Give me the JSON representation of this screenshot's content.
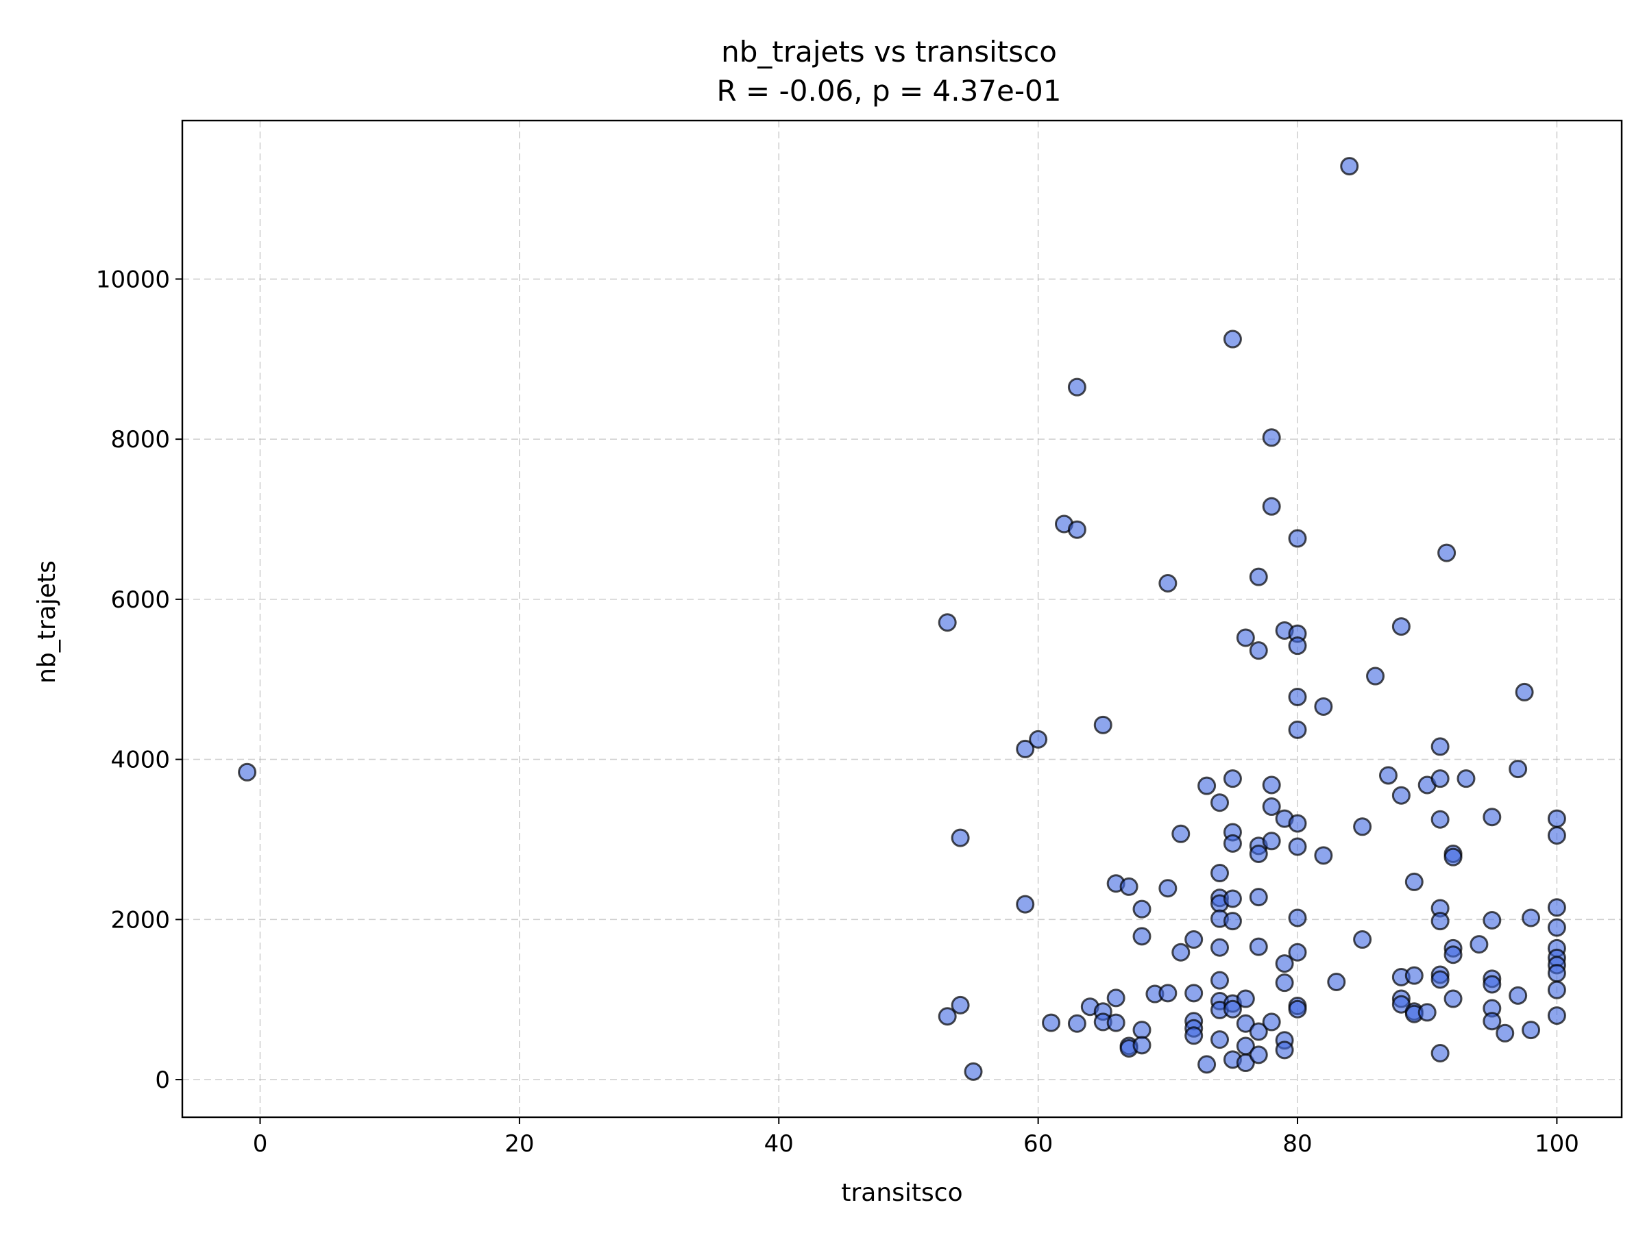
{
  "chart_data": {
    "type": "scatter",
    "title": "nb_trajets vs transitsco",
    "subtitle": "R = -0.06, p = 4.37e-01",
    "xlabel": "transitsco",
    "ylabel": "nb_trajets",
    "xlim": [
      -6,
      105
    ],
    "ylim": [
      -470,
      11980
    ],
    "xticks": [
      0,
      20,
      40,
      60,
      80,
      100
    ],
    "yticks": [
      0,
      2000,
      4000,
      6000,
      8000,
      10000
    ],
    "grid": true,
    "colors": {
      "point_fill": "#4169e1",
      "point_edge": "#000000"
    },
    "points": [
      [
        -1,
        3840
      ],
      [
        53,
        5710
      ],
      [
        53,
        790
      ],
      [
        54,
        3020
      ],
      [
        54,
        930
      ],
      [
        55,
        100
      ],
      [
        59,
        4130
      ],
      [
        59,
        2190
      ],
      [
        60,
        4250
      ],
      [
        61,
        710
      ],
      [
        62,
        6940
      ],
      [
        63,
        8650
      ],
      [
        63,
        6870
      ],
      [
        63,
        700
      ],
      [
        64,
        910
      ],
      [
        65,
        4430
      ],
      [
        65,
        850
      ],
      [
        65,
        720
      ],
      [
        66,
        2450
      ],
      [
        66,
        1020
      ],
      [
        66,
        710
      ],
      [
        67,
        2410
      ],
      [
        67,
        420
      ],
      [
        67,
        390
      ],
      [
        68,
        2130
      ],
      [
        68,
        1790
      ],
      [
        68,
        620
      ],
      [
        68,
        430
      ],
      [
        69,
        1070
      ],
      [
        70,
        6200
      ],
      [
        70,
        2390
      ],
      [
        70,
        1080
      ],
      [
        71,
        3070
      ],
      [
        71,
        1590
      ],
      [
        72,
        1750
      ],
      [
        72,
        1080
      ],
      [
        72,
        730
      ],
      [
        72,
        640
      ],
      [
        72,
        550
      ],
      [
        73,
        3670
      ],
      [
        73,
        190
      ],
      [
        74,
        3460
      ],
      [
        74,
        2580
      ],
      [
        74,
        2270
      ],
      [
        74,
        2200
      ],
      [
        74,
        2010
      ],
      [
        74,
        1650
      ],
      [
        74,
        1240
      ],
      [
        74,
        980
      ],
      [
        74,
        870
      ],
      [
        74,
        500
      ],
      [
        75,
        9250
      ],
      [
        75,
        3760
      ],
      [
        75,
        3090
      ],
      [
        75,
        2950
      ],
      [
        75,
        2260
      ],
      [
        75,
        1980
      ],
      [
        75,
        950
      ],
      [
        75,
        880
      ],
      [
        75,
        250
      ],
      [
        76,
        5520
      ],
      [
        76,
        1010
      ],
      [
        76,
        700
      ],
      [
        76,
        420
      ],
      [
        76,
        210
      ],
      [
        77,
        6280
      ],
      [
        77,
        5360
      ],
      [
        77,
        2920
      ],
      [
        77,
        2820
      ],
      [
        77,
        2280
      ],
      [
        77,
        1660
      ],
      [
        77,
        600
      ],
      [
        77,
        310
      ],
      [
        78,
        8020
      ],
      [
        78,
        7160
      ],
      [
        78,
        3680
      ],
      [
        78,
        3410
      ],
      [
        78,
        2980
      ],
      [
        78,
        720
      ],
      [
        79,
        5610
      ],
      [
        79,
        3260
      ],
      [
        79,
        1450
      ],
      [
        79,
        1210
      ],
      [
        79,
        490
      ],
      [
        79,
        370
      ],
      [
        80,
        6760
      ],
      [
        80,
        5570
      ],
      [
        80,
        5420
      ],
      [
        80,
        4780
      ],
      [
        80,
        4370
      ],
      [
        80,
        3200
      ],
      [
        80,
        2910
      ],
      [
        80,
        2020
      ],
      [
        80,
        1590
      ],
      [
        80,
        920
      ],
      [
        80,
        880
      ],
      [
        82,
        4660
      ],
      [
        82,
        2800
      ],
      [
        83,
        1220
      ],
      [
        84,
        11410
      ],
      [
        85,
        3160
      ],
      [
        85,
        1750
      ],
      [
        86,
        5040
      ],
      [
        87,
        3800
      ],
      [
        88,
        5660
      ],
      [
        88,
        3550
      ],
      [
        88,
        1280
      ],
      [
        88,
        1010
      ],
      [
        88,
        940
      ],
      [
        89,
        2470
      ],
      [
        89,
        1300
      ],
      [
        89,
        850
      ],
      [
        89,
        820
      ],
      [
        90,
        3680
      ],
      [
        90,
        840
      ],
      [
        91,
        4160
      ],
      [
        91,
        3760
      ],
      [
        91,
        3250
      ],
      [
        91,
        2140
      ],
      [
        91,
        1980
      ],
      [
        91,
        1310
      ],
      [
        91,
        1250
      ],
      [
        91,
        330
      ],
      [
        91.5,
        6580
      ],
      [
        92,
        2820
      ],
      [
        92,
        2780
      ],
      [
        92,
        1640
      ],
      [
        92,
        1560
      ],
      [
        92,
        1010
      ],
      [
        93,
        3760
      ],
      [
        94,
        1690
      ],
      [
        95,
        3280
      ],
      [
        95,
        1990
      ],
      [
        95,
        1260
      ],
      [
        95,
        1190
      ],
      [
        95,
        890
      ],
      [
        95,
        730
      ],
      [
        96,
        580
      ],
      [
        97,
        3880
      ],
      [
        97,
        1050
      ],
      [
        97.5,
        4840
      ],
      [
        98,
        2020
      ],
      [
        98,
        620
      ],
      [
        100,
        3260
      ],
      [
        100,
        3050
      ],
      [
        100,
        2150
      ],
      [
        100,
        1900
      ],
      [
        100,
        1640
      ],
      [
        100,
        1520
      ],
      [
        100,
        1430
      ],
      [
        100,
        1330
      ],
      [
        100,
        1120
      ],
      [
        100,
        800
      ]
    ]
  }
}
